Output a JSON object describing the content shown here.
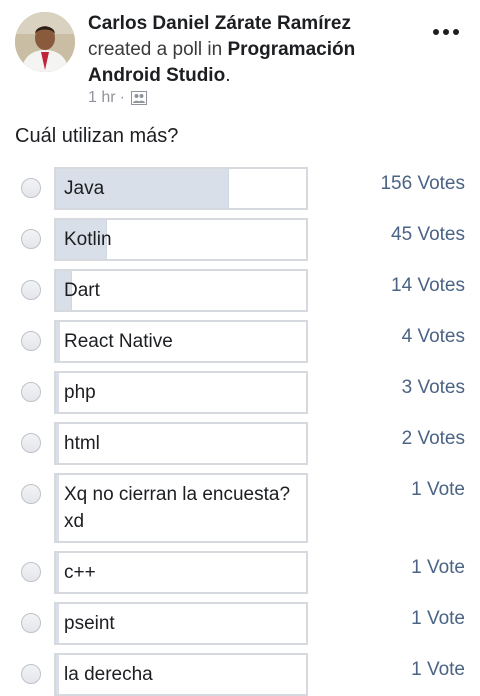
{
  "post": {
    "author": "Carlos Daniel Zárate Ramírez",
    "action": "created a poll in",
    "group": "Programación Android Studio",
    "period": ".",
    "time": "1 hr",
    "separator": "·",
    "audience_icon": "group-audience-icon",
    "more_icon": "more-options-icon"
  },
  "poll": {
    "question": "Cuál utilizan más?",
    "fill_color": "#d8dfe9",
    "votes_color": "#4b6384",
    "options": [
      {
        "label": "Java",
        "votes": "156 Votes",
        "count": 156
      },
      {
        "label": "Kotlin",
        "votes": "45 Votes",
        "count": 45
      },
      {
        "label": "Dart",
        "votes": "14 Votes",
        "count": 14
      },
      {
        "label": "React Native",
        "votes": "4 Votes",
        "count": 4
      },
      {
        "label": "php",
        "votes": "3 Votes",
        "count": 3
      },
      {
        "label": "html",
        "votes": "2 Votes",
        "count": 2
      },
      {
        "label": "Xq no cierran la encuesta? xd",
        "votes": "1 Vote",
        "count": 1
      },
      {
        "label": "c++",
        "votes": "1 Vote",
        "count": 1
      },
      {
        "label": "pseint",
        "votes": "1 Vote",
        "count": 1
      },
      {
        "label": "la derecha",
        "votes": "1 Vote",
        "count": 1
      }
    ]
  }
}
